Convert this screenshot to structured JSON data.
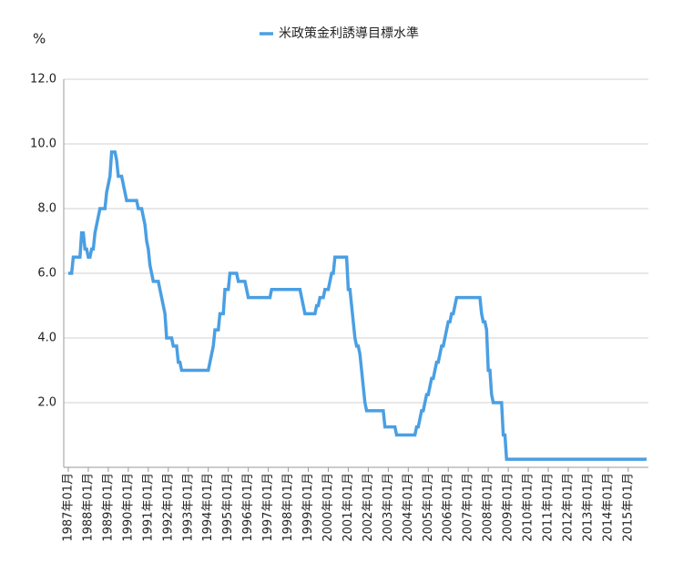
{
  "chart_data": {
    "type": "line",
    "y_label": "%",
    "legend": "top",
    "series": [
      {
        "name": "米政策金利誘導目標水準",
        "color": "#4a9fe3",
        "x": [
          "1987-01",
          "1987-03",
          "1987-04",
          "1987-08",
          "1987-09",
          "1987-10",
          "1987-11",
          "1987-12",
          "1988-01",
          "1988-02",
          "1988-03",
          "1988-04",
          "1988-05",
          "1988-06",
          "1988-07",
          "1988-08",
          "1988-11",
          "1988-12",
          "1989-01",
          "1989-02",
          "1989-03",
          "1989-05",
          "1989-06",
          "1989-07",
          "1989-09",
          "1989-10",
          "1989-11",
          "1989-12",
          "1990-06",
          "1990-07",
          "1990-09",
          "1990-10",
          "1990-11",
          "1990-12",
          "1991-01",
          "1991-02",
          "1991-03",
          "1991-04",
          "1991-07",
          "1991-08",
          "1991-09",
          "1991-10",
          "1991-11",
          "1991-12",
          "1992-03",
          "1992-04",
          "1992-06",
          "1992-07",
          "1992-08",
          "1992-09",
          "1994-01",
          "1994-02",
          "1994-03",
          "1994-04",
          "1994-05",
          "1994-07",
          "1994-08",
          "1994-10",
          "1994-11",
          "1995-01",
          "1995-02",
          "1995-06",
          "1995-07",
          "1995-11",
          "1995-12",
          "1996-01",
          "1997-02",
          "1997-03",
          "1998-08",
          "1998-09",
          "1998-10",
          "1998-11",
          "1999-05",
          "1999-06",
          "1999-07",
          "1999-08",
          "1999-10",
          "1999-11",
          "2000-01",
          "2000-02",
          "2000-03",
          "2000-04",
          "2000-05",
          "2000-12",
          "2001-01",
          "2001-02",
          "2001-03",
          "2001-04",
          "2001-05",
          "2001-06",
          "2001-07",
          "2001-08",
          "2001-09",
          "2001-10",
          "2001-11",
          "2001-12",
          "2002-10",
          "2002-11",
          "2003-05",
          "2003-06",
          "2004-05",
          "2004-06",
          "2004-07",
          "2004-08",
          "2004-09",
          "2004-10",
          "2004-11",
          "2004-12",
          "2005-01",
          "2005-02",
          "2005-03",
          "2005-04",
          "2005-05",
          "2005-06",
          "2005-07",
          "2005-08",
          "2005-09",
          "2005-10",
          "2005-11",
          "2005-12",
          "2006-01",
          "2006-02",
          "2006-03",
          "2006-04",
          "2006-05",
          "2006-06",
          "2007-08",
          "2007-09",
          "2007-10",
          "2007-11",
          "2007-12",
          "2008-01",
          "2008-02",
          "2008-03",
          "2008-04",
          "2008-09",
          "2008-10",
          "2008-11",
          "2008-12",
          "2015-12"
        ],
        "values": [
          6.0,
          6.0,
          6.5,
          6.5,
          7.25,
          7.25,
          6.75,
          6.75,
          6.5,
          6.5,
          6.75,
          6.75,
          7.25,
          7.5,
          7.75,
          8.0,
          8.0,
          8.5,
          8.75,
          9.0,
          9.75,
          9.75,
          9.5,
          9.0,
          9.0,
          8.75,
          8.5,
          8.25,
          8.25,
          8.0,
          8.0,
          7.75,
          7.5,
          7.0,
          6.75,
          6.25,
          6.0,
          5.75,
          5.75,
          5.5,
          5.25,
          5.0,
          4.75,
          4.0,
          4.0,
          3.75,
          3.75,
          3.25,
          3.25,
          3.0,
          3.0,
          3.25,
          3.5,
          3.75,
          4.25,
          4.25,
          4.75,
          4.75,
          5.5,
          5.5,
          6.0,
          6.0,
          5.75,
          5.75,
          5.5,
          5.25,
          5.25,
          5.5,
          5.5,
          5.25,
          5.0,
          4.75,
          4.75,
          5.0,
          5.0,
          5.25,
          5.25,
          5.5,
          5.5,
          5.75,
          6.0,
          6.0,
          6.5,
          6.5,
          5.5,
          5.5,
          5.0,
          4.5,
          4.0,
          3.75,
          3.75,
          3.5,
          3.0,
          2.5,
          2.0,
          1.75,
          1.75,
          1.25,
          1.25,
          1.0,
          1.0,
          1.25,
          1.25,
          1.5,
          1.75,
          1.75,
          2.0,
          2.25,
          2.25,
          2.5,
          2.75,
          2.75,
          3.0,
          3.25,
          3.25,
          3.5,
          3.75,
          3.75,
          4.0,
          4.25,
          4.5,
          4.5,
          4.75,
          4.75,
          5.0,
          5.25,
          5.25,
          4.75,
          4.5,
          4.5,
          4.25,
          3.0,
          3.0,
          2.25,
          2.0,
          2.0,
          1.0,
          1.0,
          0.25,
          0.25
        ]
      }
    ],
    "xlim": [
      "1987-01",
      "2015-12"
    ],
    "xticks": [
      {
        "value": "1987-01",
        "label": "1987年01月"
      },
      {
        "value": "1988-01",
        "label": "1988年01月"
      },
      {
        "value": "1989-01",
        "label": "1989年01月"
      },
      {
        "value": "1990-01",
        "label": "1990年01月"
      },
      {
        "value": "1991-01",
        "label": "1991年01月"
      },
      {
        "value": "1992-01",
        "label": "1992年01月"
      },
      {
        "value": "1993-01",
        "label": "1993年01月"
      },
      {
        "value": "1994-01",
        "label": "1994年01月"
      },
      {
        "value": "1995-01",
        "label": "1995年01月"
      },
      {
        "value": "1996-01",
        "label": "1996年01月"
      },
      {
        "value": "1997-01",
        "label": "1997年01月"
      },
      {
        "value": "1998-01",
        "label": "1998年01月"
      },
      {
        "value": "1999-01",
        "label": "1999年01月"
      },
      {
        "value": "2000-01",
        "label": "2000年01月"
      },
      {
        "value": "2001-01",
        "label": "2001年01月"
      },
      {
        "value": "2002-01",
        "label": "2002年01月"
      },
      {
        "value": "2003-01",
        "label": "2003年01月"
      },
      {
        "value": "2004-01",
        "label": "2004年01月"
      },
      {
        "value": "2005-01",
        "label": "2005年01月"
      },
      {
        "value": "2006-01",
        "label": "2006年01月"
      },
      {
        "value": "2007-01",
        "label": "2007年01月"
      },
      {
        "value": "2008-01",
        "label": "2008年01月"
      },
      {
        "value": "2009-01",
        "label": "2009年01月"
      },
      {
        "value": "2010-01",
        "label": "2010年01月"
      },
      {
        "value": "2011-01",
        "label": "2011年01月"
      },
      {
        "value": "2012-01",
        "label": "2012年01月"
      },
      {
        "value": "2013-01",
        "label": "2013年01月"
      },
      {
        "value": "2014-01",
        "label": "2014年01月"
      },
      {
        "value": "2015-01",
        "label": "2015年01月"
      }
    ],
    "ylim": [
      0,
      12
    ],
    "yticks": [
      {
        "value": 2,
        "label": "2.0"
      },
      {
        "value": 4,
        "label": "4.0"
      },
      {
        "value": 6,
        "label": "6.0"
      },
      {
        "value": 8,
        "label": "8.0"
      },
      {
        "value": 10,
        "label": "10.0"
      },
      {
        "value": 12,
        "label": "12.0"
      }
    ],
    "grid": true
  }
}
